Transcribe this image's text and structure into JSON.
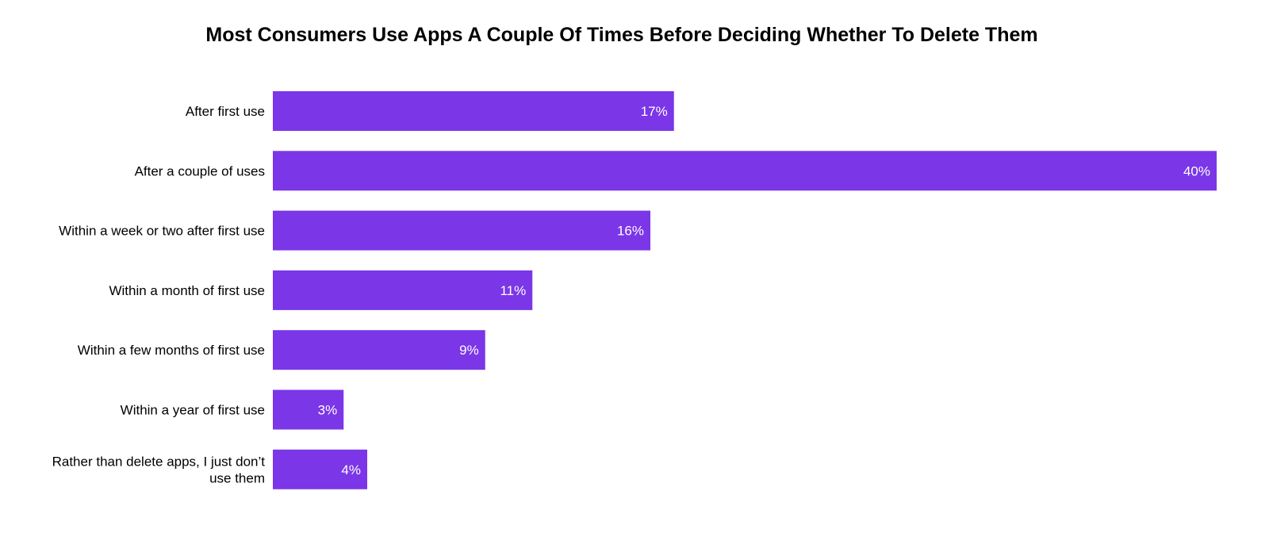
{
  "chart_data": {
    "type": "bar",
    "orientation": "horizontal",
    "title": "Most Consumers Use Apps A Couple Of Times Before Deciding Whether To Delete Them",
    "categories": [
      "After first use",
      "After a couple of uses",
      "Within a week or two after first use",
      "Within a month of first use",
      "Within a few months of first use",
      "Within a year of first use",
      "Rather than delete apps, I just don’t use them"
    ],
    "category_lines": [
      [
        "After first use"
      ],
      [
        "After a couple of uses"
      ],
      [
        "Within a week or two after first use"
      ],
      [
        "Within a month of first use"
      ],
      [
        "Within a few months of first use"
      ],
      [
        "Within a year of first use"
      ],
      [
        "Rather than delete apps, I just don’t",
        "use them"
      ]
    ],
    "values": [
      17,
      40,
      16,
      11,
      9,
      3,
      4
    ],
    "value_labels": [
      "17%",
      "40%",
      "16%",
      "11%",
      "9%",
      "3%",
      "4%"
    ],
    "unit": "%",
    "xlim": [
      0,
      40
    ],
    "grid": false,
    "legend": "none",
    "bar_color": "#7b36e8",
    "label_color": "#ffffff"
  }
}
